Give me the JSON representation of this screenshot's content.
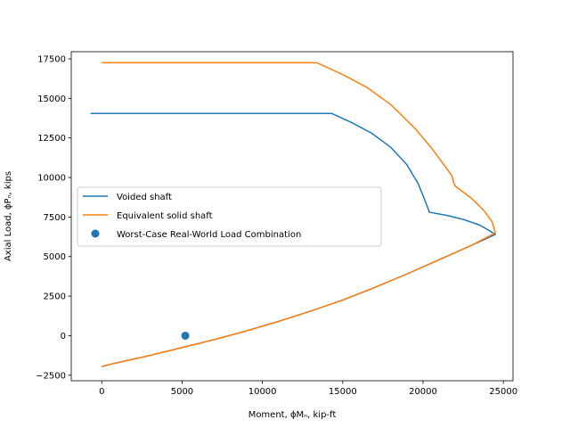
{
  "chart_data": {
    "type": "line",
    "xlabel": "Moment, ϕMₙ, kip-ft",
    "ylabel": "Axial Load, ϕPₙ, kips",
    "xlim": [
      -1900,
      25600
    ],
    "ylim": [
      -2850,
      17950
    ],
    "xticks": [
      0,
      5000,
      10000,
      15000,
      20000,
      25000
    ],
    "xtick_labels": [
      "0",
      "5000",
      "10000",
      "15000",
      "20000",
      "25000"
    ],
    "yticks": [
      -2500,
      0,
      2500,
      5000,
      7500,
      10000,
      12500,
      15000,
      17500
    ],
    "ytick_labels": [
      "−2500",
      "0",
      "2500",
      "5000",
      "7500",
      "10000",
      "12500",
      "15000",
      "17500"
    ],
    "grid": false,
    "legend_position": "center-left",
    "series": [
      {
        "name": "Voided shaft",
        "kind": "line",
        "color": "#1f77b4",
        "points": [
          [
            -700,
            14050
          ],
          [
            0,
            14050
          ],
          [
            5000,
            14050
          ],
          [
            10000,
            14050
          ],
          [
            14300,
            14050
          ],
          [
            15500,
            13500
          ],
          [
            16800,
            12800
          ],
          [
            18000,
            11900
          ],
          [
            19000,
            10800
          ],
          [
            19700,
            9600
          ],
          [
            20100,
            8600
          ],
          [
            20400,
            7800
          ],
          [
            21500,
            7600
          ],
          [
            22500,
            7350
          ],
          [
            23500,
            7000
          ],
          [
            24200,
            6600
          ],
          [
            24500,
            6400
          ],
          [
            23000,
            5700
          ],
          [
            21000,
            4800
          ],
          [
            19000,
            3900
          ],
          [
            17000,
            3050
          ],
          [
            15000,
            2250
          ],
          [
            13000,
            1550
          ],
          [
            11000,
            900
          ],
          [
            9000,
            300
          ],
          [
            7000,
            -250
          ],
          [
            5000,
            -750
          ],
          [
            3000,
            -1250
          ],
          [
            1000,
            -1700
          ],
          [
            0,
            -1950
          ]
        ]
      },
      {
        "name": "Equivalent solid shaft",
        "kind": "line",
        "color": "#ff7f0e",
        "points": [
          [
            0,
            17250
          ],
          [
            5000,
            17250
          ],
          [
            10000,
            17250
          ],
          [
            13400,
            17250
          ],
          [
            15000,
            16500
          ],
          [
            16500,
            15700
          ],
          [
            18000,
            14600
          ],
          [
            19500,
            13100
          ],
          [
            20500,
            11900
          ],
          [
            21300,
            10800
          ],
          [
            21800,
            10100
          ],
          [
            21900,
            9700
          ],
          [
            22000,
            9450
          ],
          [
            23000,
            8700
          ],
          [
            23800,
            7900
          ],
          [
            24300,
            7200
          ],
          [
            24500,
            6500
          ],
          [
            23000,
            5700
          ],
          [
            21000,
            4800
          ],
          [
            19000,
            3900
          ],
          [
            17000,
            3050
          ],
          [
            15000,
            2250
          ],
          [
            13000,
            1550
          ],
          [
            11000,
            900
          ],
          [
            9000,
            300
          ],
          [
            7000,
            -250
          ],
          [
            5000,
            -750
          ],
          [
            3000,
            -1250
          ],
          [
            1000,
            -1700
          ],
          [
            0,
            -1950
          ]
        ]
      },
      {
        "name": "Worst-Case Real-World Load Combination",
        "kind": "scatter",
        "color": "#1f77b4",
        "points": [
          [
            5200,
            0
          ]
        ]
      }
    ]
  }
}
